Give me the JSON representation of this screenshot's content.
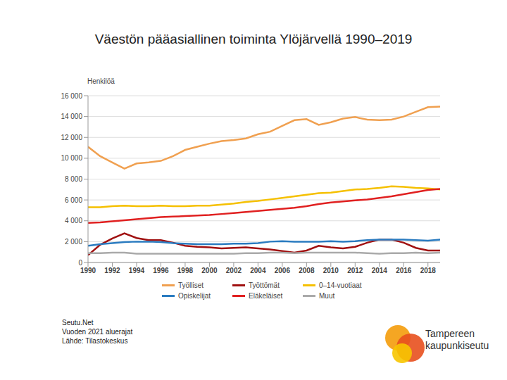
{
  "chart_data": {
    "type": "line",
    "title": "Väestön pääasiallinen toiminta Ylöjärvellä 1990–2019",
    "y_label": "Henkilöä",
    "x": [
      1990,
      1991,
      1992,
      1993,
      1994,
      1995,
      1996,
      1997,
      1998,
      1999,
      2000,
      2001,
      2002,
      2003,
      2004,
      2005,
      2006,
      2007,
      2008,
      2009,
      2010,
      2011,
      2012,
      2013,
      2014,
      2015,
      2016,
      2017,
      2018,
      2019
    ],
    "xlim": [
      1990,
      2019
    ],
    "xticks": [
      1990,
      1992,
      1994,
      1996,
      1998,
      2000,
      2002,
      2004,
      2006,
      2008,
      2010,
      2012,
      2014,
      2016,
      2018
    ],
    "ylim": [
      0,
      16000
    ],
    "yticks": [
      0,
      {
        "value": 2000,
        "label": "2 000"
      },
      {
        "value": 4000,
        "label": "4 000"
      },
      {
        "value": 6000,
        "label": "6 000"
      },
      {
        "value": 8000,
        "label": "8 000"
      },
      {
        "value": 10000,
        "label": "10 000"
      },
      {
        "value": 12000,
        "label": "12 000"
      },
      {
        "value": 14000,
        "label": "14 000"
      },
      {
        "value": 16000,
        "label": "16 000"
      }
    ],
    "grid": true,
    "legend": "bottom",
    "series": [
      {
        "name": "Työlliset",
        "color": "#f0a050",
        "values": [
          11100,
          10200,
          9600,
          9000,
          9500,
          9600,
          9750,
          10200,
          10800,
          11100,
          11400,
          11650,
          11750,
          11900,
          12300,
          12550,
          13100,
          13650,
          13750,
          13200,
          13450,
          13800,
          13950,
          13700,
          13650,
          13700,
          14000,
          14450,
          14900,
          14950
        ]
      },
      {
        "name": "Työttömät",
        "color": "#a01010",
        "values": [
          700,
          1700,
          2300,
          2800,
          2350,
          2150,
          2150,
          1900,
          1600,
          1500,
          1450,
          1350,
          1400,
          1450,
          1350,
          1250,
          1100,
          950,
          1150,
          1600,
          1450,
          1350,
          1500,
          1900,
          2200,
          2200,
          1900,
          1400,
          1150,
          1150
        ]
      },
      {
        "name": "0–14-vuotiaat",
        "color": "#f5c000",
        "values": [
          5300,
          5300,
          5400,
          5450,
          5400,
          5400,
          5450,
          5400,
          5400,
          5450,
          5450,
          5550,
          5650,
          5800,
          5900,
          6050,
          6200,
          6350,
          6500,
          6650,
          6700,
          6850,
          7000,
          7050,
          7150,
          7300,
          7250,
          7150,
          7100,
          7000
        ]
      },
      {
        "name": "Opiskelijat",
        "color": "#2a7bc0",
        "values": [
          1600,
          1750,
          1850,
          1950,
          2000,
          2000,
          1950,
          1850,
          1800,
          1750,
          1750,
          1750,
          1800,
          1800,
          1850,
          2000,
          2050,
          2000,
          2000,
          2000,
          2050,
          2000,
          2050,
          2150,
          2200,
          2200,
          2200,
          2150,
          2100,
          2200
        ]
      },
      {
        "name": "Eläkeläiset",
        "color": "#e02020",
        "values": [
          3800,
          3850,
          3950,
          4050,
          4150,
          4250,
          4350,
          4400,
          4450,
          4500,
          4550,
          4650,
          4750,
          4850,
          4950,
          5050,
          5150,
          5250,
          5400,
          5600,
          5750,
          5850,
          5950,
          6050,
          6200,
          6350,
          6550,
          6750,
          6950,
          7050
        ]
      },
      {
        "name": "Muut",
        "color": "#aaaaaa",
        "values": [
          900,
          900,
          950,
          950,
          850,
          850,
          850,
          850,
          850,
          850,
          850,
          850,
          850,
          900,
          900,
          950,
          950,
          900,
          950,
          950,
          950,
          950,
          950,
          900,
          850,
          900,
          900,
          950,
          900,
          950
        ]
      }
    ]
  },
  "footer": [
    "Seutu.Net",
    "Vuoden 2021 aluerajat",
    "Lähde: Tilastokeskus"
  ],
  "logo": [
    "Tampereen",
    "kaupunkiseutu"
  ]
}
